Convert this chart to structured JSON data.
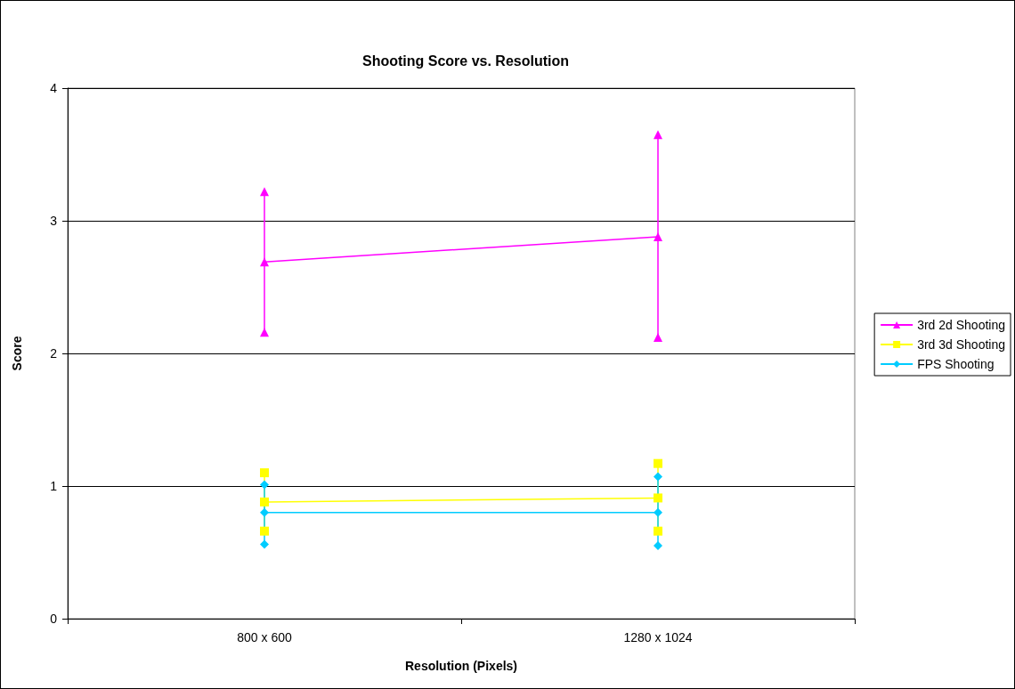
{
  "chart_data": {
    "type": "line",
    "title": "Shooting Score vs. Resolution",
    "xlabel": "Resolution (Pixels)",
    "ylabel": "Score",
    "categories": [
      "800 x 600",
      "1280 x 1024"
    ],
    "ylim": [
      0,
      4
    ],
    "yticks": [
      0,
      1,
      2,
      3,
      4
    ],
    "grid": "y",
    "legend": "right",
    "series": [
      {
        "name": "3rd 2d Shooting",
        "color": "#ff00ff",
        "marker": "triangle",
        "values": [
          2.69,
          2.88
        ]
      },
      {
        "name": "3rd 3d Shooting",
        "color": "#ffff00",
        "marker": "square",
        "values": [
          0.88,
          0.91
        ]
      },
      {
        "name": "FPS Shooting",
        "color": "#00ccff",
        "marker": "diamond",
        "values": [
          0.8,
          0.8
        ]
      },
      {
        "color": "#ff00ff",
        "marker": "triangle",
        "x": [
          "800 x 600",
          "800 x 600"
        ],
        "values": [
          2.16,
          3.22
        ]
      },
      {
        "color": "#ff00ff",
        "marker": "triangle",
        "x": [
          "1280 x 1024",
          "1280 x 1024"
        ],
        "values": [
          2.12,
          3.65
        ]
      },
      {
        "color": "#ffff00",
        "marker": "square",
        "x": [
          "800 x 600",
          "800 x 600"
        ],
        "values": [
          0.66,
          1.1
        ]
      },
      {
        "color": "#ffff00",
        "marker": "square",
        "x": [
          "1280 x 1024",
          "1280 x 1024"
        ],
        "values": [
          0.66,
          1.17
        ]
      },
      {
        "color": "#00ccff",
        "marker": "diamond",
        "x": [
          "800 x 600",
          "800 x 600"
        ],
        "values": [
          0.56,
          1.01
        ]
      },
      {
        "color": "#00ccff",
        "marker": "diamond",
        "x": [
          "1280 x 1024",
          "1280 x 1024"
        ],
        "values": [
          0.55,
          1.07
        ]
      }
    ]
  }
}
